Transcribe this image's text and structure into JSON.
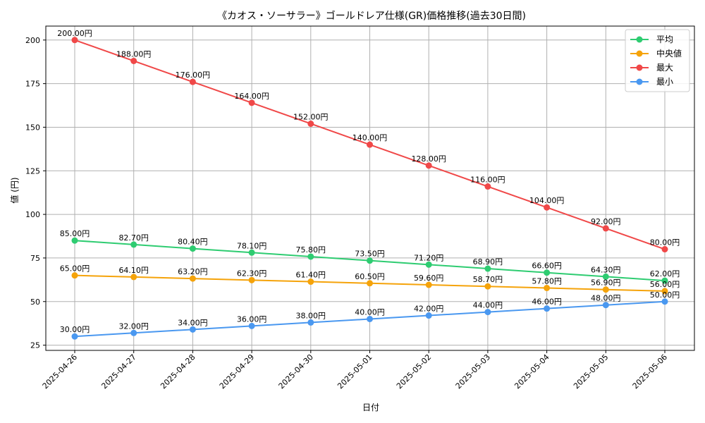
{
  "chart_data": {
    "type": "line",
    "title": "《カオス・ソーサラー》ゴールドレア仕様(GR)価格推移(過去30日間)",
    "xlabel": "日付",
    "ylabel": "値 (円)",
    "ylim": [
      22,
      208
    ],
    "yticks": [
      25,
      50,
      75,
      100,
      125,
      150,
      175,
      200
    ],
    "grid": true,
    "legend_position": "top-right",
    "value_suffix": "円",
    "categories": [
      "2025-04-26",
      "2025-04-27",
      "2025-04-28",
      "2025-04-29",
      "2025-04-30",
      "2025-05-01",
      "2025-05-02",
      "2025-05-03",
      "2025-05-04",
      "2025-05-05",
      "2025-05-06"
    ],
    "series": [
      {
        "name": "平均",
        "color": "#2ecc71",
        "values": [
          85.0,
          82.7,
          80.4,
          78.1,
          75.8,
          73.5,
          71.2,
          68.9,
          66.6,
          64.3,
          62.0
        ]
      },
      {
        "name": "中央値",
        "color": "#f5a30a",
        "values": [
          65.0,
          64.1,
          63.2,
          62.3,
          61.4,
          60.5,
          59.6,
          58.7,
          57.8,
          56.9,
          56.0
        ]
      },
      {
        "name": "最大",
        "color": "#f04848",
        "values": [
          200.0,
          188.0,
          176.0,
          164.0,
          152.0,
          140.0,
          128.0,
          116.0,
          104.0,
          92.0,
          80.0
        ]
      },
      {
        "name": "最小",
        "color": "#4a98f0",
        "values": [
          30.0,
          32.0,
          34.0,
          36.0,
          38.0,
          40.0,
          42.0,
          44.0,
          46.0,
          48.0,
          50.0
        ]
      }
    ]
  }
}
